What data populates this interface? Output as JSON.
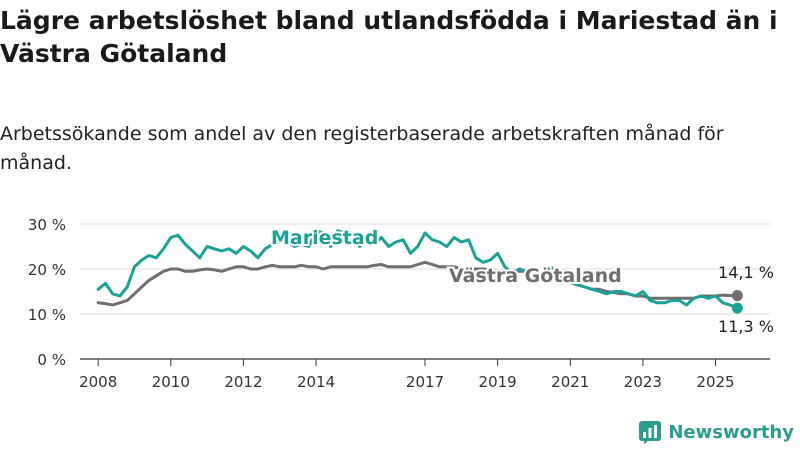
{
  "title": "Lägre arbetslöshet bland utlandsfödda i Mariestad än i Västra Götaland",
  "subtitle": "Arbetssökande som andel av den registerbaserade arbetskraften månad för månad.",
  "brand": "Newsworthy",
  "colors": {
    "mariestad": "#1aa294",
    "vastra_gotaland": "#6f6f70",
    "grid": "#dcdcdc",
    "axis": "#333333",
    "brand": "#2a9d8f"
  },
  "chart_data": {
    "type": "line",
    "ylim": [
      0,
      30
    ],
    "y_ticks": [
      0,
      10,
      20,
      30
    ],
    "y_tick_labels": [
      "0 %",
      "10 %",
      "20 %",
      "30 %"
    ],
    "x_ticks": [
      2008,
      2010,
      2012,
      2014,
      2017,
      2019,
      2021,
      2023,
      2025
    ],
    "x_tick_labels": [
      "2008",
      "2010",
      "2012",
      "2014",
      "2017",
      "2019",
      "2021",
      "2023",
      "2025"
    ],
    "xlim": [
      2007.5,
      2026.5
    ],
    "grid": true,
    "series": [
      {
        "name": "Mariestad",
        "color": "#1aa294",
        "end_label": "11,3 %",
        "x": [
          2008.0,
          2008.2,
          2008.4,
          2008.6,
          2008.8,
          2009.0,
          2009.2,
          2009.4,
          2009.6,
          2009.8,
          2010.0,
          2010.2,
          2010.4,
          2010.6,
          2010.8,
          2011.0,
          2011.2,
          2011.4,
          2011.6,
          2011.8,
          2012.0,
          2012.2,
          2012.4,
          2012.6,
          2012.8,
          2013.0,
          2013.2,
          2013.4,
          2013.6,
          2013.8,
          2014.0,
          2014.2,
          2014.4,
          2014.6,
          2014.8,
          2015.0,
          2015.2,
          2015.4,
          2015.6,
          2015.8,
          2016.0,
          2016.2,
          2016.4,
          2016.6,
          2016.8,
          2017.0,
          2017.2,
          2017.4,
          2017.6,
          2017.8,
          2018.0,
          2018.2,
          2018.4,
          2018.6,
          2018.8,
          2019.0,
          2019.2,
          2019.4,
          2019.6,
          2019.8,
          2020.0,
          2020.2,
          2020.4,
          2020.6,
          2020.8,
          2021.0,
          2021.2,
          2021.4,
          2021.6,
          2021.8,
          2022.0,
          2022.2,
          2022.4,
          2022.6,
          2022.8,
          2023.0,
          2023.2,
          2023.4,
          2023.6,
          2023.8,
          2024.0,
          2024.2,
          2024.4,
          2024.6,
          2024.8,
          2025.0,
          2025.2,
          2025.4,
          2025.6
        ],
        "values": [
          15.5,
          16.8,
          14.5,
          14.0,
          16.0,
          20.5,
          22.0,
          23.0,
          22.5,
          24.5,
          27.0,
          27.5,
          25.5,
          24.0,
          22.5,
          25.0,
          24.5,
          24.0,
          24.5,
          23.5,
          25.0,
          24.0,
          22.5,
          24.5,
          25.5,
          26.0,
          26.0,
          25.0,
          25.5,
          25.0,
          28.5,
          28.0,
          25.0,
          28.5,
          28.0,
          27.5,
          25.0,
          26.5,
          25.5,
          27.0,
          25.0,
          26.0,
          26.5,
          23.5,
          25.0,
          28.0,
          26.5,
          26.0,
          25.0,
          27.0,
          26.0,
          26.5,
          22.5,
          21.5,
          22.0,
          23.5,
          20.5,
          19.0,
          20.0,
          19.5,
          17.5,
          18.5,
          20.5,
          20.0,
          17.5,
          17.0,
          16.5,
          16.0,
          15.5,
          15.0,
          14.5,
          15.0,
          15.0,
          14.5,
          14.0,
          15.0,
          13.0,
          12.5,
          12.5,
          13.0,
          13.0,
          12.0,
          13.5,
          14.0,
          13.5,
          14.0,
          12.5,
          12.0,
          11.3
        ]
      },
      {
        "name": "Västra Götaland",
        "color": "#6f6f70",
        "end_label": "14,1 %",
        "x": [
          2008.0,
          2008.2,
          2008.4,
          2008.6,
          2008.8,
          2009.0,
          2009.2,
          2009.4,
          2009.6,
          2009.8,
          2010.0,
          2010.2,
          2010.4,
          2010.6,
          2010.8,
          2011.0,
          2011.2,
          2011.4,
          2011.6,
          2011.8,
          2012.0,
          2012.2,
          2012.4,
          2012.6,
          2012.8,
          2013.0,
          2013.2,
          2013.4,
          2013.6,
          2013.8,
          2014.0,
          2014.2,
          2014.4,
          2014.6,
          2014.8,
          2015.0,
          2015.2,
          2015.4,
          2015.6,
          2015.8,
          2016.0,
          2016.2,
          2016.4,
          2016.6,
          2016.8,
          2017.0,
          2017.2,
          2017.4,
          2017.6,
          2017.8,
          2018.0,
          2018.2,
          2018.4,
          2018.6,
          2018.8,
          2019.0,
          2019.2,
          2019.4,
          2019.6,
          2019.8,
          2020.0,
          2020.2,
          2020.4,
          2020.6,
          2020.8,
          2021.0,
          2021.2,
          2021.4,
          2021.6,
          2021.8,
          2022.0,
          2022.2,
          2022.4,
          2022.6,
          2022.8,
          2023.0,
          2023.2,
          2023.4,
          2023.6,
          2023.8,
          2024.0,
          2024.2,
          2024.4,
          2024.6,
          2024.8,
          2025.0,
          2025.2,
          2025.4,
          2025.6
        ],
        "values": [
          12.5,
          12.3,
          12.0,
          12.5,
          13.0,
          14.5,
          16.0,
          17.5,
          18.5,
          19.5,
          20.0,
          20.0,
          19.5,
          19.5,
          19.8,
          20.0,
          19.8,
          19.5,
          20.0,
          20.5,
          20.5,
          20.0,
          20.0,
          20.5,
          20.8,
          20.5,
          20.5,
          20.5,
          20.8,
          20.5,
          20.5,
          20.0,
          20.5,
          20.5,
          20.5,
          20.5,
          20.5,
          20.5,
          20.8,
          21.0,
          20.5,
          20.5,
          20.5,
          20.5,
          21.0,
          21.5,
          21.0,
          20.5,
          20.5,
          20.5,
          20.0,
          20.0,
          20.0,
          20.0,
          19.8,
          19.5,
          19.5,
          19.5,
          19.5,
          19.5,
          19.0,
          18.5,
          18.5,
          18.0,
          17.5,
          17.0,
          16.5,
          16.0,
          15.5,
          15.5,
          15.0,
          14.8,
          14.5,
          14.5,
          14.0,
          14.0,
          13.5,
          13.5,
          13.5,
          13.5,
          13.5,
          13.5,
          13.5,
          14.0,
          14.0,
          14.0,
          14.2,
          14.1,
          14.1
        ]
      }
    ],
    "series_labels": [
      "Mariestad",
      "Västra Götaland"
    ]
  }
}
